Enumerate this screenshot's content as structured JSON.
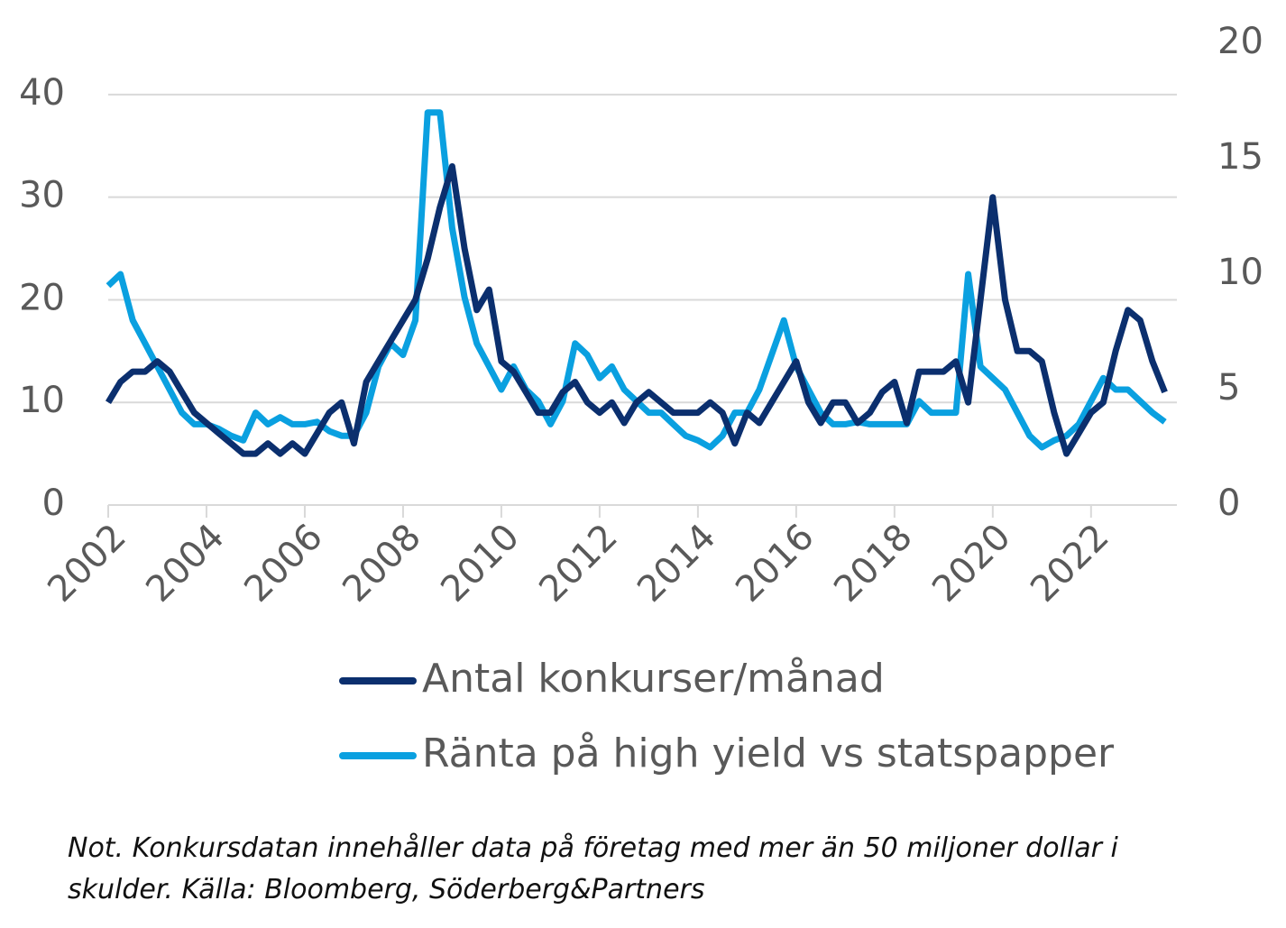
{
  "chart_data": {
    "type": "line",
    "x": [
      2002,
      2002.25,
      2002.5,
      2002.75,
      2003,
      2003.25,
      2003.5,
      2003.75,
      2004,
      2004.25,
      2004.5,
      2004.75,
      2005,
      2005.25,
      2005.5,
      2005.75,
      2006,
      2006.25,
      2006.5,
      2006.75,
      2007,
      2007.25,
      2007.5,
      2007.75,
      2008,
      2008.25,
      2008.5,
      2008.75,
      2009,
      2009.25,
      2009.5,
      2009.75,
      2010,
      2010.25,
      2010.5,
      2010.75,
      2011,
      2011.25,
      2011.5,
      2011.75,
      2012,
      2012.25,
      2012.5,
      2012.75,
      2013,
      2013.25,
      2013.5,
      2013.75,
      2014,
      2014.25,
      2014.5,
      2014.75,
      2015,
      2015.25,
      2015.5,
      2015.75,
      2016,
      2016.25,
      2016.5,
      2016.75,
      2017,
      2017.25,
      2017.5,
      2017.75,
      2018,
      2018.25,
      2018.5,
      2018.75,
      2019,
      2019.25,
      2019.5,
      2019.75,
      2020,
      2020.25,
      2020.5,
      2020.75,
      2021,
      2021.25,
      2021.5,
      2021.75,
      2022,
      2022.25,
      2022.5,
      2022.75,
      2023,
      2023.25,
      2023.5
    ],
    "series": [
      {
        "name": "Antal konkurser/månad",
        "color": "#0b2f6e",
        "values": [
          10,
          12,
          13,
          13,
          14,
          13,
          11,
          9,
          8,
          7,
          6,
          5,
          5,
          6,
          5,
          6,
          5,
          7,
          9,
          10,
          6,
          12,
          14,
          16,
          18,
          20,
          24,
          29,
          33,
          25,
          19,
          21,
          14,
          13,
          11,
          9,
          9,
          11,
          12,
          10,
          9,
          10,
          8,
          10,
          11,
          10,
          9,
          9,
          9,
          10,
          9,
          6,
          9,
          8,
          10,
          12,
          14,
          10,
          8,
          10,
          10,
          8,
          9,
          11,
          12,
          8,
          13,
          13,
          13,
          14,
          10,
          20,
          30,
          20,
          15,
          15,
          14,
          9,
          5,
          7,
          9,
          10,
          15,
          19,
          18,
          14,
          11
        ]
      },
      {
        "name": "Ränta på high yield vs statspapper",
        "color": "#0aa0e0",
        "axis": "y2",
        "values": [
          9.5,
          10,
          8,
          7,
          6,
          5,
          4,
          3.5,
          3.5,
          3.3,
          3,
          2.8,
          4,
          3.5,
          3.8,
          3.5,
          3.5,
          3.6,
          3.2,
          3,
          3,
          4,
          6,
          7,
          6.5,
          8,
          17,
          17,
          12,
          9,
          7,
          6,
          5,
          6,
          5,
          4.5,
          3.5,
          4.5,
          7,
          6.5,
          5.5,
          6,
          5,
          4.5,
          4,
          4,
          3.5,
          3,
          2.8,
          2.5,
          3,
          4,
          4,
          5,
          6.5,
          8,
          6,
          5,
          4,
          3.5,
          3.5,
          3.6,
          3.5,
          3.5,
          3.5,
          3.5,
          4.5,
          4,
          4,
          4,
          10,
          6,
          5.5,
          5,
          4,
          3,
          2.5,
          2.8,
          3,
          3.5,
          4.5,
          5.5,
          5,
          5,
          4.5,
          4,
          3.6
        ]
      }
    ],
    "xlim": [
      2002,
      2023.6
    ],
    "xticks": [
      2002,
      2004,
      2006,
      2008,
      2010,
      2012,
      2014,
      2016,
      2018,
      2020,
      2022
    ],
    "ylim": [
      0,
      45
    ],
    "yticks": [
      0,
      10,
      20,
      30,
      40
    ],
    "y2lim": [
      0,
      20
    ],
    "y2ticks": [
      0,
      5,
      10,
      15,
      20
    ],
    "grid": true,
    "note": "Not. Konkursdatan innehåller data på företag med mer än 50 miljoner dollar i skulder. Källa: Bloomberg, Söderberg&Partners"
  }
}
